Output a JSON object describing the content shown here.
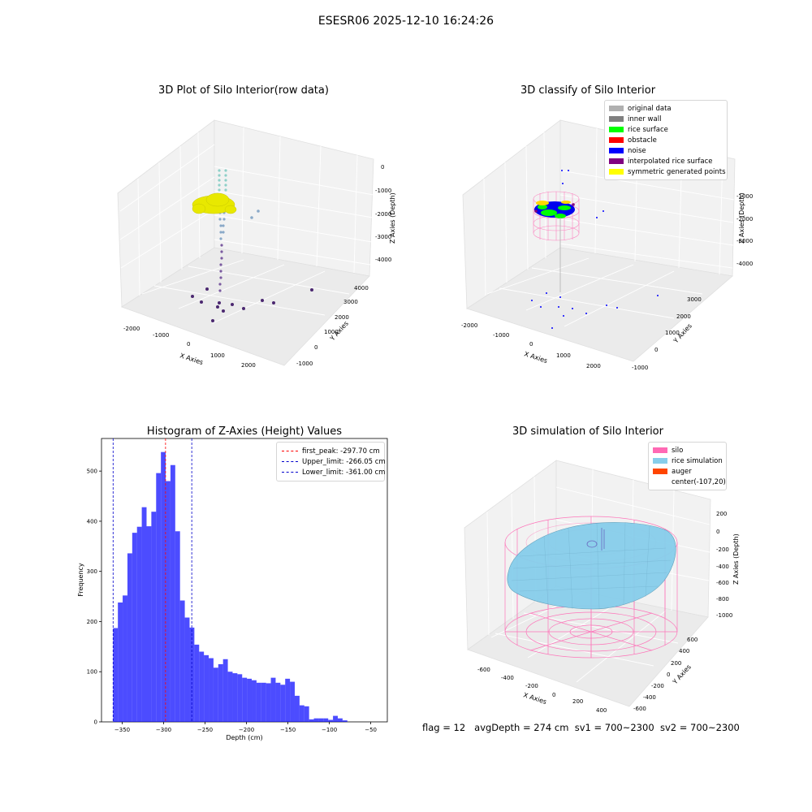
{
  "figure": {
    "suptitle": "ESESR06 2025-12-10 16:24:26",
    "status": {
      "flag": "flag = 12",
      "avg_depth": "avgDepth = 274 cm",
      "sv1": "sv1 = 700~2300",
      "sv2": "sv2 = 700~2300"
    }
  },
  "chart_data": [
    {
      "type": "scatter",
      "title": "3D Plot of Silo Interior(row data)",
      "xlabel": "X Axies",
      "ylabel": "Y Axies",
      "zlabel": "Z Axies (Depth)",
      "xticks": [
        "-2000",
        "-1000",
        "0",
        "1000",
        "2000"
      ],
      "yticks": [
        "-1000",
        "0",
        "1000",
        "2000",
        "3000",
        "4000"
      ],
      "zticks": [
        "0",
        "-1000",
        "-2000",
        "-3000",
        "-4000"
      ]
    },
    {
      "type": "scatter",
      "title": "3D classify of Silo Interior",
      "xlabel": "X Axies",
      "ylabel": "Y Axies",
      "zlabel": "Z Axies (Depth)",
      "xticks": [
        "-2000",
        "-1000",
        "0",
        "1000",
        "2000"
      ],
      "yticks": [
        "-1000",
        "0",
        "1000",
        "2000",
        "3000"
      ],
      "zticks": [
        "-1000",
        "-2000",
        "-3000",
        "-4000"
      ],
      "legend": [
        {
          "label": "original data",
          "color": "#b0b0b0"
        },
        {
          "label": "inner wall",
          "color": "#808080"
        },
        {
          "label": "rice surface",
          "color": "#00ff00"
        },
        {
          "label": "obstacle",
          "color": "#ff0000"
        },
        {
          "label": "noise",
          "color": "#0000ff"
        },
        {
          "label": "interpolated rice surface",
          "color": "#800080"
        },
        {
          "label": "symmetric generated points",
          "color": "#ffff00"
        }
      ]
    },
    {
      "type": "bar",
      "title": "Histogram of Z-Axies (Height) Values",
      "xlabel": "Depth (cm)",
      "ylabel": "Frequency",
      "xlim": [
        -375,
        -30
      ],
      "ylim": [
        0,
        565
      ],
      "xticks": [
        -350,
        -300,
        -250,
        -200,
        -150,
        -100,
        -50
      ],
      "yticks": [
        0,
        100,
        200,
        300,
        400,
        500
      ],
      "bin_edges_start": -361,
      "bin_width": 5.77,
      "counts": [
        187,
        238,
        252,
        336,
        377,
        389,
        428,
        390,
        419,
        496,
        538,
        480,
        512,
        380,
        242,
        208,
        188,
        154,
        140,
        133,
        127,
        108,
        115,
        125,
        100,
        97,
        95,
        88,
        86,
        83,
        78,
        78,
        77,
        88,
        78,
        74,
        86,
        80,
        52,
        33,
        31,
        5,
        7,
        7,
        7,
        4,
        12,
        7,
        3
      ],
      "bar_color": "#0000ff",
      "lines": [
        {
          "label": "first_peak: -297.70 cm",
          "value": -297.7,
          "color": "#ff0000"
        },
        {
          "label": "Upper_limit: -266.05 cm",
          "value": -266.05,
          "color": "#0000cc"
        },
        {
          "label": "Lower_limit: -361.00 cm",
          "value": -361.0,
          "color": "#0000cc"
        }
      ]
    },
    {
      "type": "scatter",
      "title": "3D simulation of Silo Interior",
      "xlabel": "X Axies",
      "ylabel": "Y Axies",
      "zlabel": "Z Axies (Depth)",
      "xticks": [
        "-600",
        "-400",
        "-200",
        "0",
        "200",
        "400"
      ],
      "yticks": [
        "-600",
        "-400",
        "-200",
        "0",
        "200",
        "400",
        "600"
      ],
      "zticks": [
        "200",
        "0",
        "-200",
        "-400",
        "-600",
        "-800",
        "-1000"
      ],
      "legend": [
        {
          "label": "silo",
          "color": "#ff69b4"
        },
        {
          "label": "rice simulation",
          "color": "#87ceeb"
        },
        {
          "label": "auger",
          "color": "#ff4500"
        },
        {
          "label": "center(-107,20)",
          "color": ""
        }
      ]
    }
  ]
}
